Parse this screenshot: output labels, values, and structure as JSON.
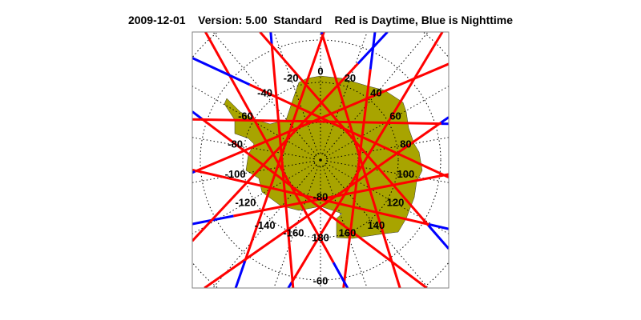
{
  "title": {
    "date": "2009-12-01",
    "version": "Version: 5.00",
    "mode": "Standard",
    "legend": "Red is Daytime, Blue is Nighttime"
  },
  "map": {
    "projection": "south polar stereographic",
    "longitude_labels": [
      "0",
      "20",
      "40",
      "60",
      "80",
      "100",
      "120",
      "140",
      "160",
      "180",
      "-160",
      "-140",
      "-120",
      "-100",
      "-80",
      "-60",
      "-40",
      "-20"
    ],
    "latitude_labels": [
      "-80",
      "-60"
    ],
    "colors": {
      "land": "#a8a400",
      "day": "#ff0000",
      "night": "#0000ff",
      "grid": "#000000",
      "frame": "#808080"
    }
  }
}
